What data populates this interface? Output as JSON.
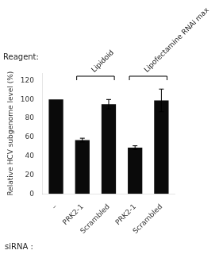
{
  "chart_data": {
    "type": "bar",
    "categories": [
      "–",
      "PRK2-1",
      "Scrambled",
      "PRK2-1",
      "Scrambled"
    ],
    "values": [
      100,
      57,
      95,
      49,
      99
    ],
    "errors": [
      0,
      2,
      5,
      2,
      12
    ],
    "color": "#0a0a0a",
    "ylabel": "Relative HCV subgenome level (%)",
    "ylim": [
      0,
      128
    ],
    "yticks": [
      0,
      20,
      40,
      60,
      80,
      100,
      120
    ],
    "grid": false,
    "xlabel": "siRNA :",
    "group_label": "Reagent:",
    "groups": [
      {
        "label": "Lipidoid",
        "first": 1,
        "last": 2
      },
      {
        "label": "Lipofectamine RNAi max",
        "first": 3,
        "last": 4
      }
    ]
  }
}
